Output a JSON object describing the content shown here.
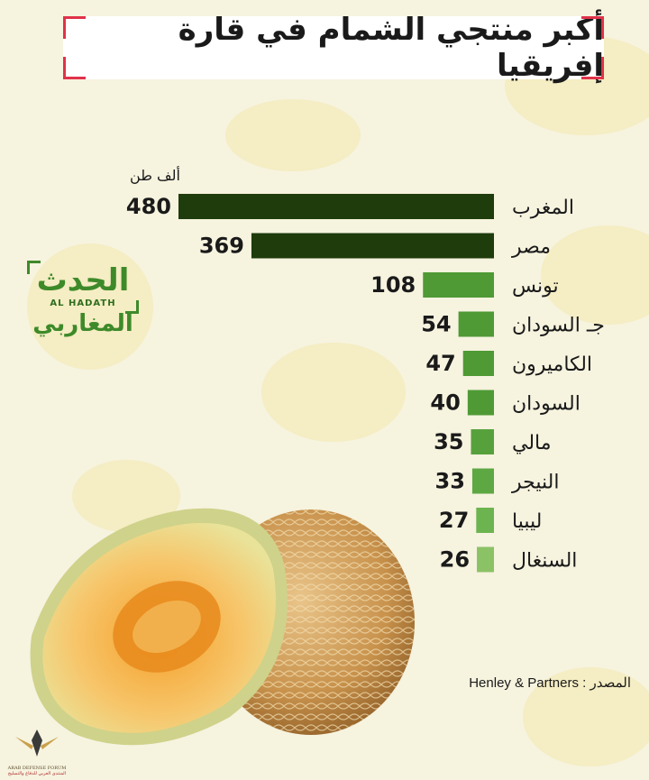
{
  "title": "أكبر منتجي الشمام في قارة إفريقيا",
  "brand": {
    "logo_ar": "الحدث",
    "logo_en": "AL HADATH",
    "logo_sub": "المغاربي"
  },
  "source": "المصدر : Henley & Partners",
  "forum": {
    "name": "ARAB DEFENSE FORUM",
    "sub": "المنتدى العربي للدفاع والتسليح"
  },
  "colors": {
    "dark_bar": "#1e3c0c",
    "mid_bar": "#4f9a35",
    "light_bar": "#8bc265",
    "text": "#1a1a1a"
  },
  "icons": [
    "melon-illustration",
    "corner-bracket-icon",
    "forum-emblem-icon"
  ],
  "chart_data": {
    "type": "bar",
    "orientation": "horizontal",
    "unit_label": "ألف طن",
    "categories": [
      "المغرب",
      "مصر",
      "تونس",
      "جـ السودان",
      "الكاميرون",
      "السودان",
      "مالي",
      "النيجر",
      "ليبيا",
      "السنغال"
    ],
    "values": [
      480,
      369,
      108,
      54,
      47,
      40,
      35,
      33,
      27,
      26
    ],
    "value_labels": [
      "480",
      "369",
      "108",
      "54",
      "47",
      "40",
      "35",
      "33",
      "27",
      "26"
    ],
    "bar_colors": [
      "#1e3c0c",
      "#1e3c0c",
      "#4f9a35",
      "#4f9a35",
      "#4f9a35",
      "#4f9a35",
      "#57a13c",
      "#5ea843",
      "#6cb44f",
      "#8bc265"
    ],
    "xlim": [
      0,
      480
    ],
    "grid": false,
    "legend": "none"
  }
}
